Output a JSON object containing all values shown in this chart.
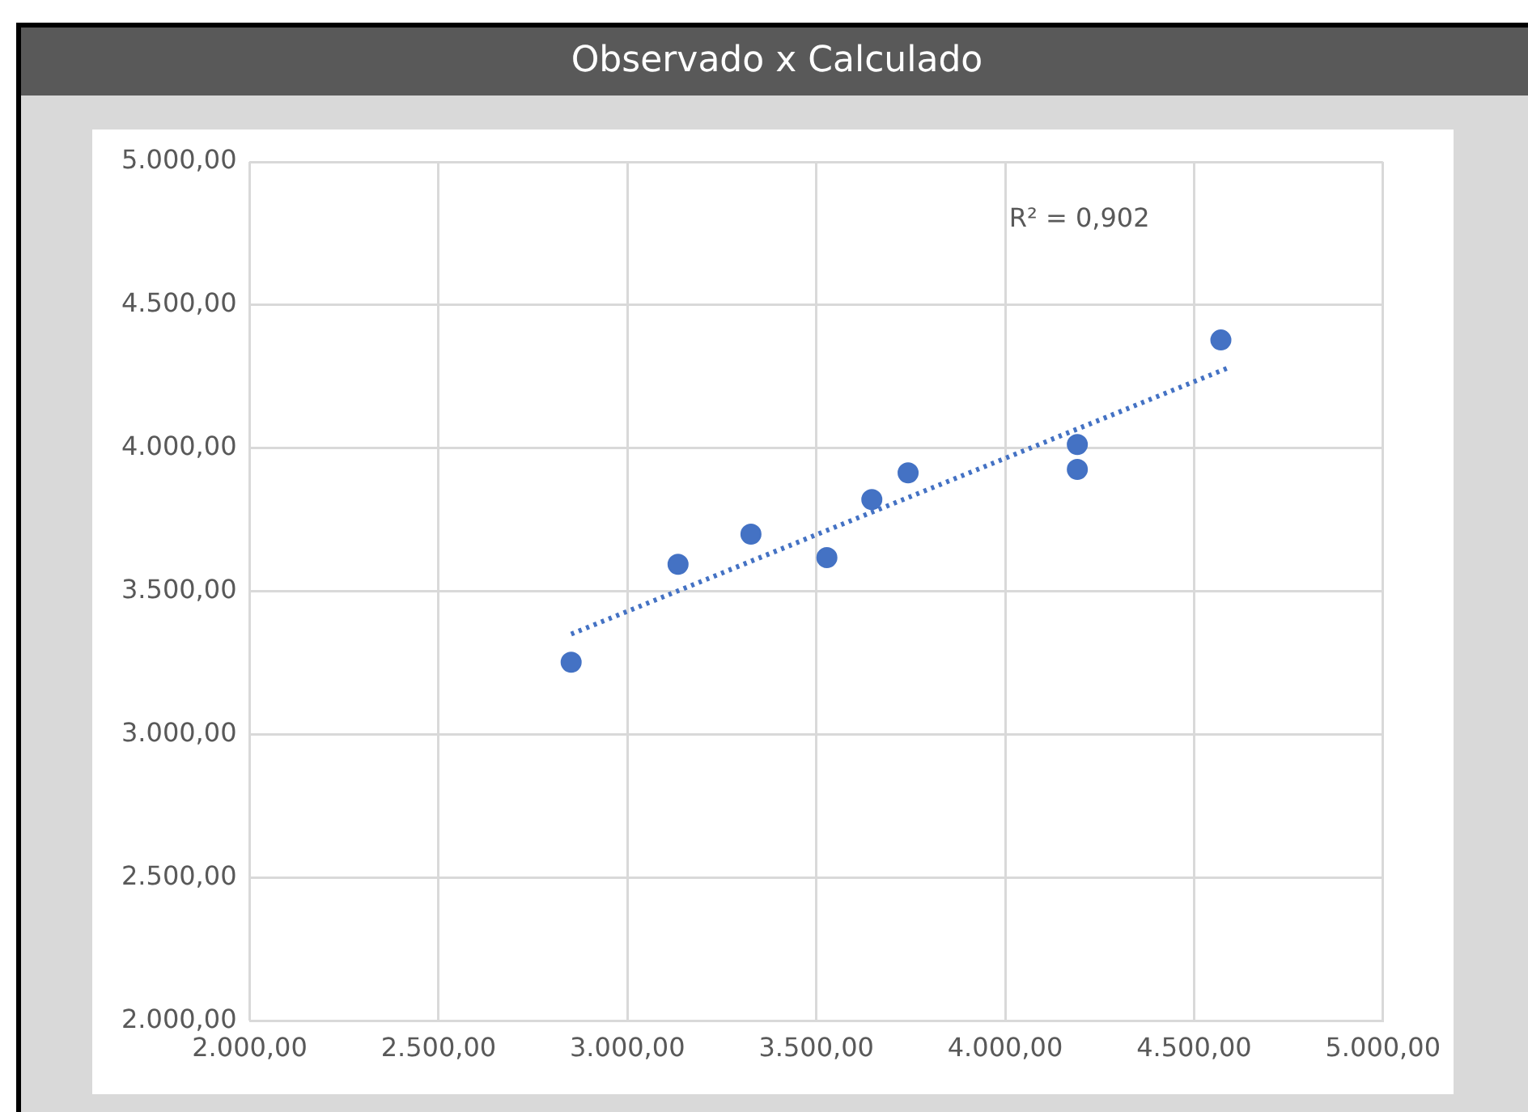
{
  "chart_data": {
    "type": "scatter",
    "title": "Observado x Calculado",
    "series": [
      {
        "type": "scatter",
        "color": "#4472c4",
        "x": [
          2851,
          3134,
          3327,
          3528,
          3647,
          3743,
          4191,
          4191,
          4571
        ],
        "values": [
          3253,
          3595,
          3700,
          3618,
          3821,
          3914,
          4013,
          3926,
          4378
        ]
      },
      {
        "type": "line",
        "color": "#4472c4",
        "x": [
          2851,
          4589
        ],
        "values": [
          3351,
          4280
        ],
        "marker": "none",
        "line_style": "dotted"
      }
    ],
    "xlim": [
      2000,
      5000
    ],
    "ylim": [
      2000,
      5000
    ],
    "xticks": [
      {
        "value": 2000,
        "label": "2.000,00"
      },
      {
        "value": 2500,
        "label": "2.500,00"
      },
      {
        "value": 3000,
        "label": "3.000,00"
      },
      {
        "value": 3500,
        "label": "3.500,00"
      },
      {
        "value": 4000,
        "label": "4.000,00"
      },
      {
        "value": 4500,
        "label": "4.500,00"
      },
      {
        "value": 5000,
        "label": "5.000,00"
      }
    ],
    "yticks": [
      {
        "value": 2000,
        "label": "2.000,00"
      },
      {
        "value": 2500,
        "label": "2.500,00"
      },
      {
        "value": 3000,
        "label": "3.000,00"
      },
      {
        "value": 3500,
        "label": "3.500,00"
      },
      {
        "value": 4000,
        "label": "4.000,00"
      },
      {
        "value": 4500,
        "label": "4.500,00"
      },
      {
        "value": 5000,
        "label": "5.000,00"
      }
    ],
    "grid": true,
    "marker": "circle",
    "annotations": [
      "R² = 0,902"
    ]
  }
}
